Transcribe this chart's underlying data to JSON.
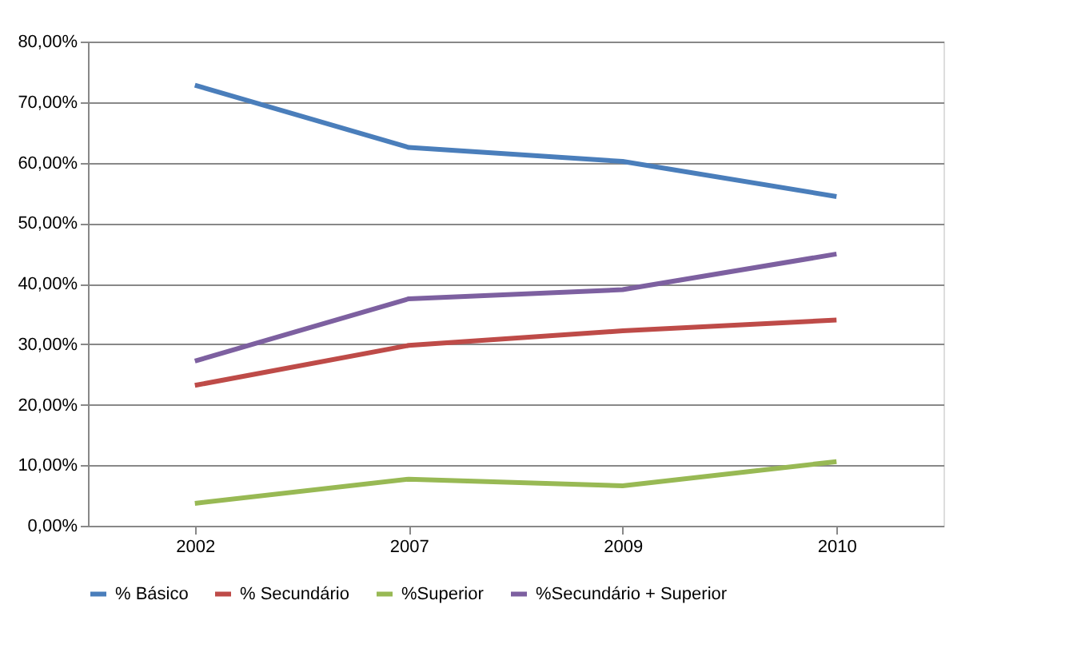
{
  "chart_data": {
    "type": "line",
    "categories": [
      "2002",
      "2007",
      "2009",
      "2010"
    ],
    "series": [
      {
        "name": "% Básico",
        "color": "#4a7ebb",
        "values": [
          72.8,
          62.5,
          60.2,
          54.4
        ]
      },
      {
        "name": "% Secundário",
        "color": "#be4b48",
        "values": [
          23.2,
          29.8,
          32.2,
          34.0
        ]
      },
      {
        "name": "%Superior",
        "color": "#98b954",
        "values": [
          3.7,
          7.7,
          6.6,
          10.6
        ]
      },
      {
        "name": "%Secundário + Superior",
        "color": "#7d60a0",
        "values": [
          27.2,
          37.5,
          39.0,
          44.9
        ]
      }
    ],
    "ylim": [
      0,
      80
    ],
    "yticks": [
      {
        "value": 0,
        "label": "0,00%"
      },
      {
        "value": 10,
        "label": "10,00%"
      },
      {
        "value": 20,
        "label": "20,00%"
      },
      {
        "value": 30,
        "label": "30,00%"
      },
      {
        "value": 40,
        "label": "40,00%"
      },
      {
        "value": 50,
        "label": "50,00%"
      },
      {
        "value": 60,
        "label": "60,00%"
      },
      {
        "value": 70,
        "label": "70,00%"
      },
      {
        "value": 80,
        "label": "80,00%"
      }
    ],
    "grid": "y",
    "legend": "bottom",
    "marker": "none",
    "line_style": "solid"
  }
}
